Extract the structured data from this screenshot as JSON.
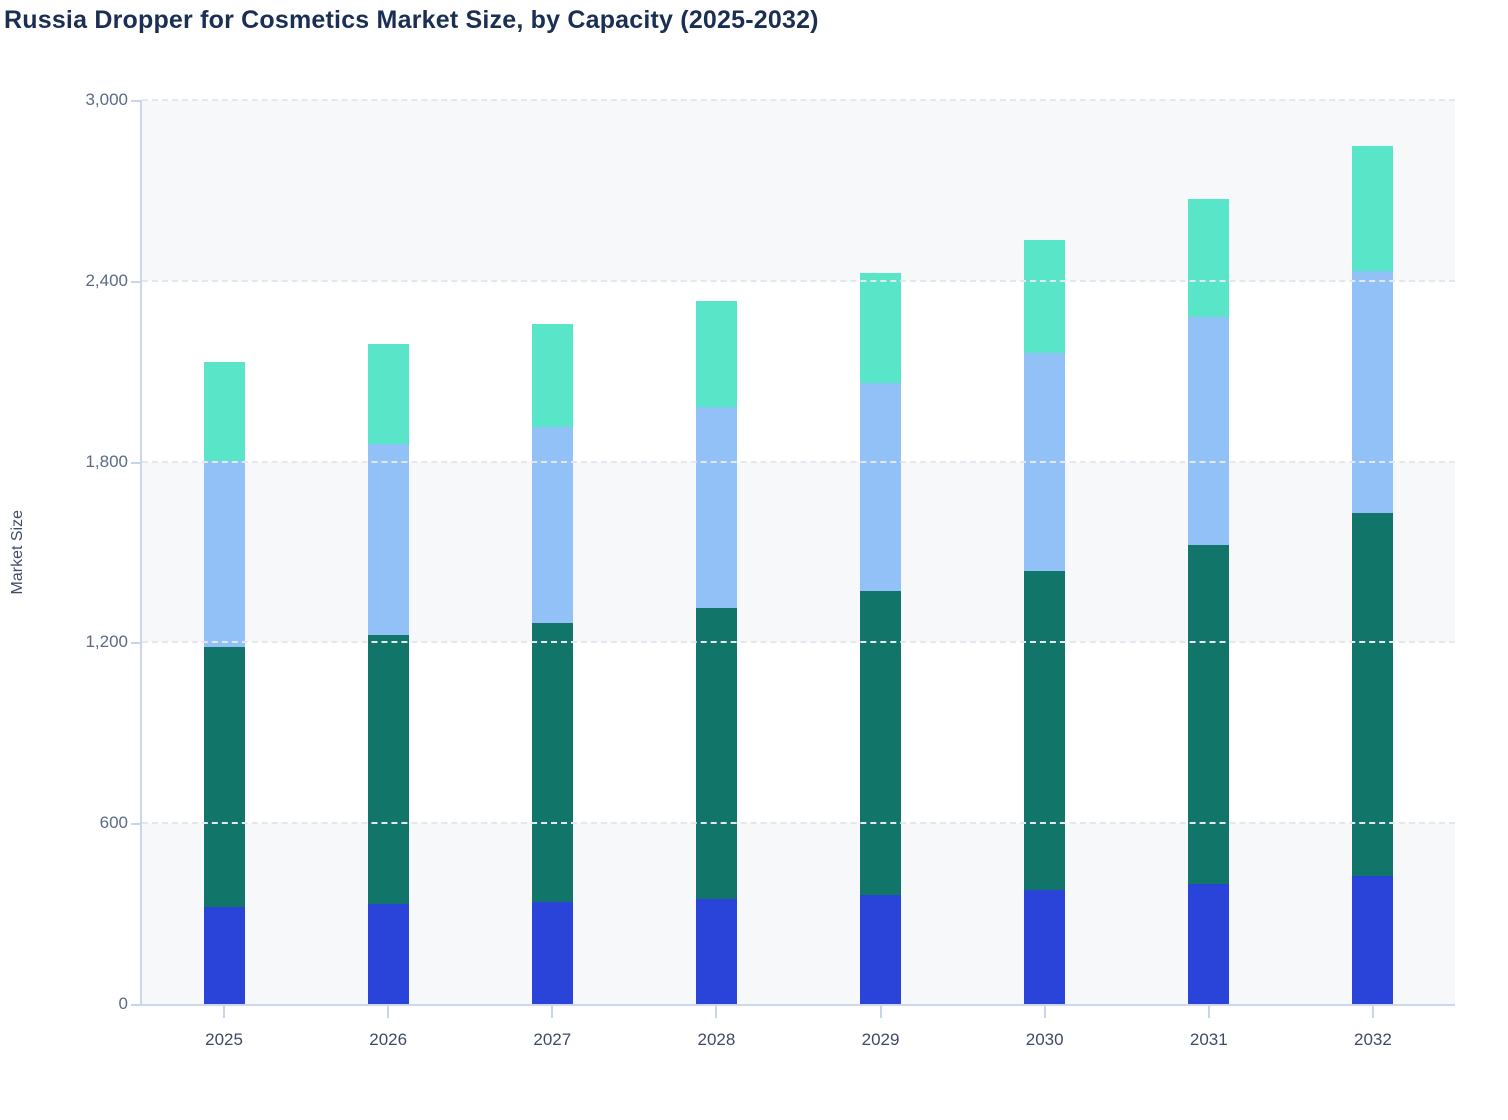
{
  "title": "Russia Dropper for Cosmetics Market Size, by Capacity (2025-2032)",
  "axes": {
    "y_label": "Market Size",
    "y_tick_labels": [
      "0",
      "600",
      "1,200",
      "1,800",
      "2,400",
      "3,000"
    ],
    "y_tick_values": [
      0,
      600,
      1200,
      1800,
      2400,
      3000
    ]
  },
  "chart_data": {
    "type": "bar",
    "stacked": true,
    "title": "Russia Dropper for Cosmetics Market Size, by Capacity (2025-2032)",
    "xlabel": "",
    "ylabel": "Market Size",
    "ylim": [
      0,
      3000
    ],
    "grid": "horizontal-dashed",
    "legend_position": "none-visible",
    "categories": [
      "2025",
      "2026",
      "2027",
      "2028",
      "2029",
      "2030",
      "2031",
      "2032"
    ],
    "series": [
      {
        "name": "bottom-segment-blue",
        "color": "#2a44da",
        "values": [
          323,
          333,
          340,
          348,
          363,
          378,
          397,
          425
        ]
      },
      {
        "name": "second-segment-teal",
        "color": "#11756a",
        "values": [
          863,
          892,
          926,
          965,
          1008,
          1059,
          1125,
          1203
        ]
      },
      {
        "name": "third-segment-light-blue",
        "color": "#92c1f8",
        "values": [
          617,
          634,
          650,
          669,
          691,
          723,
          759,
          806
        ]
      },
      {
        "name": "top-segment-mint",
        "color": "#59e6c8",
        "values": [
          327,
          331,
          340,
          351,
          363,
          374,
          392,
          413
        ]
      }
    ],
    "totals": [
      2130,
      2190,
      2256,
      2333,
      2425,
      2534,
      2673,
      2847
    ]
  },
  "colors": {
    "title_text": "#1b2e54",
    "axis_line": "#ccd6f1",
    "tick_mark": "#c8d3ee",
    "gridline": "#e4e7ed",
    "band_fill": "#f7f8fa",
    "y_tick_text": "#5c6a85",
    "x_tick_text": "#3e4b66",
    "background": "#ffffff"
  }
}
